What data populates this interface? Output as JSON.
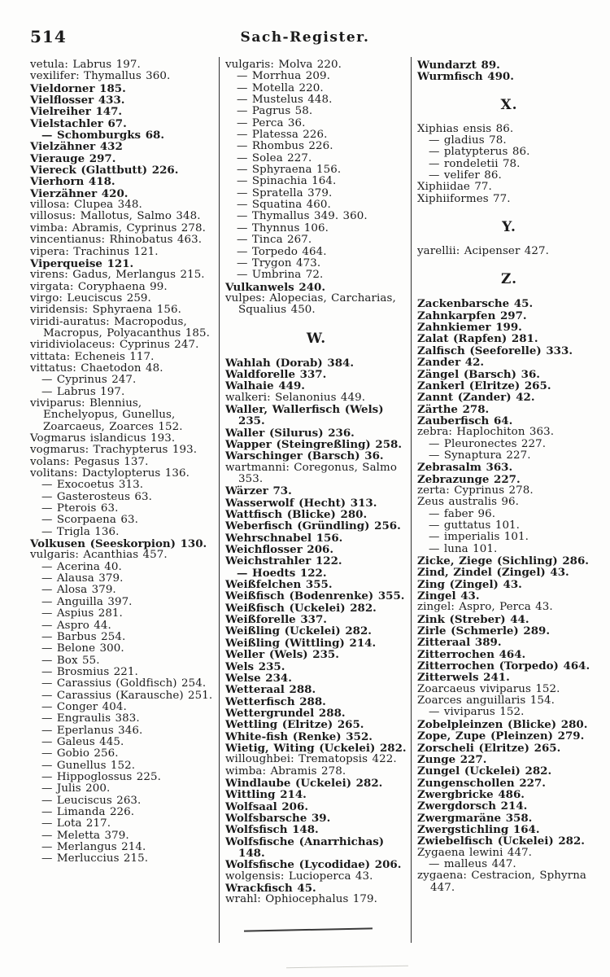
{
  "header": {
    "page_number": "514",
    "title": "Sach-Register."
  },
  "columns": [
    {
      "entries": [
        {
          "t": "vetula: Labrus 197.",
          "s": "a"
        },
        {
          "t": "vexilifer: Thymallus 360.",
          "s": "a"
        },
        {
          "t": "Vieldorner 185.",
          "s": "f"
        },
        {
          "t": "Vielflosser 433.",
          "s": "f"
        },
        {
          "t": "Vielreiher 147.",
          "s": "f"
        },
        {
          "t": "Vielstachler 67.",
          "s": "f"
        },
        {
          "t": "— Schomburgks 68.",
          "s": "sf"
        },
        {
          "t": "Vielzähner 432",
          "s": "f"
        },
        {
          "t": "Vierauge 297.",
          "s": "f"
        },
        {
          "t": "Viereck (Glattbutt) 226.",
          "s": "f"
        },
        {
          "t": "Vierhorn 418.",
          "s": "f"
        },
        {
          "t": "Vierzähner 420.",
          "s": "f"
        },
        {
          "t": "villosa: Clupea 348.",
          "s": "a"
        },
        {
          "t": "villosus: Mallotus, Salmo 348.",
          "s": "a"
        },
        {
          "t": "vimba: Abramis, Cyprinus 278.",
          "s": "a"
        },
        {
          "t": "vincentianus: Rhinobatus 463.",
          "s": "a"
        },
        {
          "t": "vipera: Trachinus 121.",
          "s": "a"
        },
        {
          "t": "Viperqueise 121.",
          "s": "f"
        },
        {
          "t": "virens: Gadus, Merlangus 215.",
          "s": "a"
        },
        {
          "t": "virgata: Coryphaena 99.",
          "s": "a"
        },
        {
          "t": "virgo: Leuciscus 259.",
          "s": "a"
        },
        {
          "t": "viridensis: Sphyraena 156.",
          "s": "a"
        },
        {
          "t": "viridi-auratus: Macropodus, Macropus, Polyacanthus 185.",
          "s": "a"
        },
        {
          "t": "viridiviolaceus: Cyprinus 247.",
          "s": "a"
        },
        {
          "t": "vittata: Echeneis 117.",
          "s": "a"
        },
        {
          "t": "vittatus: Chaetodon 48.",
          "s": "a"
        },
        {
          "t": "— Cyprinus 247.",
          "s": "sa"
        },
        {
          "t": "— Labrus 197.",
          "s": "sa"
        },
        {
          "t": "viviparus: Blennius, Enchelyopus, Gunellus, Zoarcaeus, Zoarces 152.",
          "s": "a"
        },
        {
          "t": "Vogmarus islandicus 193.",
          "s": "a"
        },
        {
          "t": "vogmarus: Trachypterus 193.",
          "s": "a"
        },
        {
          "t": "volans: Pegasus 137.",
          "s": "a"
        },
        {
          "t": "volitans: Dactylopterus 136.",
          "s": "a"
        },
        {
          "t": "— Exocoetus 313.",
          "s": "sa"
        },
        {
          "t": "— Gasterosteus 63.",
          "s": "sa"
        },
        {
          "t": "— Pterois 63.",
          "s": "sa"
        },
        {
          "t": "— Scorpaena 63.",
          "s": "sa"
        },
        {
          "t": "— Trigla 136.",
          "s": "sa"
        },
        {
          "t": "Volkusen (Seeskorpion) 130.",
          "s": "f"
        },
        {
          "t": "vulgaris: Acanthias 457.",
          "s": "a"
        },
        {
          "t": "— Acerina 40.",
          "s": "sa"
        },
        {
          "t": "— Alausa 379.",
          "s": "sa"
        },
        {
          "t": "— Alosa 379.",
          "s": "sa"
        },
        {
          "t": "— Anguilla 397.",
          "s": "sa"
        },
        {
          "t": "— Aspius 281.",
          "s": "sa"
        },
        {
          "t": "— Aspro 44.",
          "s": "sa"
        },
        {
          "t": "— Barbus 254.",
          "s": "sa"
        },
        {
          "t": "— Belone 300.",
          "s": "sa"
        },
        {
          "t": "— Box 55.",
          "s": "sa"
        },
        {
          "t": "— Brosmius 221.",
          "s": "sa"
        },
        {
          "t": "— Carassius (Goldfisch) 254.",
          "s": "sa"
        },
        {
          "t": "— Carassius (Karausche) 251.",
          "s": "sa"
        },
        {
          "t": "— Conger 404.",
          "s": "sa"
        },
        {
          "t": "— Engraulis 383.",
          "s": "sa"
        },
        {
          "t": "— Eperlanus 346.",
          "s": "sa"
        },
        {
          "t": "— Galeus 445.",
          "s": "sa"
        },
        {
          "t": "— Gobio 256.",
          "s": "sa"
        },
        {
          "t": "— Gunellus 152.",
          "s": "sa"
        },
        {
          "t": "— Hippoglossus 225.",
          "s": "sa"
        },
        {
          "t": "— Julis 200.",
          "s": "sa"
        },
        {
          "t": "— Leuciscus 263.",
          "s": "sa"
        },
        {
          "t": "— Limanda 226.",
          "s": "sa"
        },
        {
          "t": "— Lota 217.",
          "s": "sa"
        },
        {
          "t": "— Meletta 379.",
          "s": "sa"
        },
        {
          "t": "— Merlangus 214.",
          "s": "sa"
        },
        {
          "t": "— Merluccius 215.",
          "s": "sa"
        }
      ]
    },
    {
      "entries": [
        {
          "t": "vulgaris: Molva 220.",
          "s": "a"
        },
        {
          "t": "— Morrhua 209.",
          "s": "sa"
        },
        {
          "t": "— Motella 220.",
          "s": "sa"
        },
        {
          "t": "— Mustelus 448.",
          "s": "sa"
        },
        {
          "t": "— Pagrus 58.",
          "s": "sa"
        },
        {
          "t": "— Perca 36.",
          "s": "sa"
        },
        {
          "t": "— Platessa 226.",
          "s": "sa"
        },
        {
          "t": "— Rhombus 226.",
          "s": "sa"
        },
        {
          "t": "— Solea 227.",
          "s": "sa"
        },
        {
          "t": "— Sphyraena 156.",
          "s": "sa"
        },
        {
          "t": "— Spinachia 164.",
          "s": "sa"
        },
        {
          "t": "— Spratella 379.",
          "s": "sa"
        },
        {
          "t": "— Squatina 460.",
          "s": "sa"
        },
        {
          "t": "— Thymallus 349. 360.",
          "s": "sa"
        },
        {
          "t": "— Thynnus 106.",
          "s": "sa"
        },
        {
          "t": "— Tinca 267.",
          "s": "sa"
        },
        {
          "t": "— Torpedo 464.",
          "s": "sa"
        },
        {
          "t": "— Trygon 473.",
          "s": "sa"
        },
        {
          "t": "— Umbrina 72.",
          "s": "sa"
        },
        {
          "t": "Vulkanwels 240.",
          "s": "f"
        },
        {
          "t": "vulpes: Alopecias, Carcharias, Squalius 450.",
          "s": "a"
        },
        {
          "t": "W.",
          "s": "h"
        },
        {
          "t": "Wahlah (Dorab) 384.",
          "s": "f"
        },
        {
          "t": "Waldforelle 337.",
          "s": "f"
        },
        {
          "t": "Walhaie 449.",
          "s": "f"
        },
        {
          "t": "walkeri: Selanonius 449.",
          "s": "a"
        },
        {
          "t": "Waller, Wallerfisch (Wels) 235.",
          "s": "f"
        },
        {
          "t": "Waller (Silurus) 236.",
          "s": "f"
        },
        {
          "t": "Wapper (Steingreßling) 258.",
          "s": "f"
        },
        {
          "t": "Warschinger (Barsch) 36.",
          "s": "f"
        },
        {
          "t": "wartmanni: Coregonus, Salmo 353.",
          "s": "a"
        },
        {
          "t": "Wärzer 73.",
          "s": "f"
        },
        {
          "t": "Wasserwolf (Hecht) 313.",
          "s": "f"
        },
        {
          "t": "Wattfisch (Blicke) 280.",
          "s": "f"
        },
        {
          "t": "Weberfisch (Gründling) 256.",
          "s": "f"
        },
        {
          "t": "Wehrschnabel 156.",
          "s": "f"
        },
        {
          "t": "Weichflosser 206.",
          "s": "f"
        },
        {
          "t": "Weichstrahler 122.",
          "s": "f"
        },
        {
          "t": "— Hoedts 122.",
          "s": "sf"
        },
        {
          "t": "Weißfelchen 355.",
          "s": "f"
        },
        {
          "t": "Weißfisch (Bodenrenke) 355.",
          "s": "f"
        },
        {
          "t": "Weißfisch (Uckelei) 282.",
          "s": "f"
        },
        {
          "t": "Weißforelle 337.",
          "s": "f"
        },
        {
          "t": "Weißling (Uckelei) 282.",
          "s": "f"
        },
        {
          "t": "Weißling (Wittling) 214.",
          "s": "f"
        },
        {
          "t": "Weller (Wels) 235.",
          "s": "f"
        },
        {
          "t": "Wels 235.",
          "s": "f"
        },
        {
          "t": "Welse 234.",
          "s": "f"
        },
        {
          "t": "Wetteraal 288.",
          "s": "f"
        },
        {
          "t": "Wetterfisch 288.",
          "s": "f"
        },
        {
          "t": "Wettergrundel 288.",
          "s": "f"
        },
        {
          "t": "Wettling (Elritze) 265.",
          "s": "f"
        },
        {
          "t": "White-fish (Renke) 352.",
          "s": "f"
        },
        {
          "t": "Wietig, Witing (Uckelei) 282.",
          "s": "f"
        },
        {
          "t": "willoughbei: Trematopsis 422.",
          "s": "a"
        },
        {
          "t": "wimba: Abramis 278.",
          "s": "a"
        },
        {
          "t": "Windlaube (Uckelei) 282.",
          "s": "f"
        },
        {
          "t": "Wittling 214.",
          "s": "f"
        },
        {
          "t": "Wolfsaal 206.",
          "s": "f"
        },
        {
          "t": "Wolfsbarsche 39.",
          "s": "f"
        },
        {
          "t": "Wolfsfisch 148.",
          "s": "f"
        },
        {
          "t": "Wolfsfische (Anarrhichas) 148.",
          "s": "f"
        },
        {
          "t": "Wolfsfische (Lycodidae) 206.",
          "s": "f"
        },
        {
          "t": "wolgensis: Lucioperca 43.",
          "s": "a"
        },
        {
          "t": "Wrackfisch 45.",
          "s": "f"
        },
        {
          "t": "wrahl: Ophiocephalus 179.",
          "s": "a"
        }
      ]
    },
    {
      "entries": [
        {
          "t": "Wundarzt 89.",
          "s": "f"
        },
        {
          "t": "Wurmfisch 490.",
          "s": "f"
        },
        {
          "t": "X.",
          "s": "h"
        },
        {
          "t": "Xiphias ensis 86.",
          "s": "a"
        },
        {
          "t": "— gladius 78.",
          "s": "sa"
        },
        {
          "t": "— platypterus 86.",
          "s": "sa"
        },
        {
          "t": "— rondeletii 78.",
          "s": "sa"
        },
        {
          "t": "— velifer 86.",
          "s": "sa"
        },
        {
          "t": "Xiphiidae 77.",
          "s": "a"
        },
        {
          "t": "Xiphiiformes 77.",
          "s": "a"
        },
        {
          "t": "Y.",
          "s": "h"
        },
        {
          "t": "yarellii: Acipenser 427.",
          "s": "a"
        },
        {
          "t": "Z.",
          "s": "h"
        },
        {
          "t": "Zackenbarsche 45.",
          "s": "f"
        },
        {
          "t": "Zahnkarpfen 297.",
          "s": "f"
        },
        {
          "t": "Zahnkiemer 199.",
          "s": "f"
        },
        {
          "t": "Zalat (Rapfen) 281.",
          "s": "f"
        },
        {
          "t": "Zalfisch (Seeforelle) 333.",
          "s": "f"
        },
        {
          "t": "Zander 42.",
          "s": "f"
        },
        {
          "t": "Zängel (Barsch) 36.",
          "s": "f"
        },
        {
          "t": "Zankerl (Elritze) 265.",
          "s": "f"
        },
        {
          "t": "Zannt (Zander) 42.",
          "s": "f"
        },
        {
          "t": "Zärthe 278.",
          "s": "f"
        },
        {
          "t": "Zauberfisch 64.",
          "s": "f"
        },
        {
          "t": "zebra: Haplochiton 363.",
          "s": "a"
        },
        {
          "t": "— Pleuronectes 227.",
          "s": "sa"
        },
        {
          "t": "— Synaptura 227.",
          "s": "sa"
        },
        {
          "t": "Zebrasalm 363.",
          "s": "f"
        },
        {
          "t": "Zebrazunge 227.",
          "s": "f"
        },
        {
          "t": "zerta: Cyprinus 278.",
          "s": "a"
        },
        {
          "t": "Zeus australis 96.",
          "s": "a"
        },
        {
          "t": "— faber 96.",
          "s": "sa"
        },
        {
          "t": "— guttatus 101.",
          "s": "sa"
        },
        {
          "t": "— imperialis 101.",
          "s": "sa"
        },
        {
          "t": "— luna 101.",
          "s": "sa"
        },
        {
          "t": "Zicke, Ziege (Sichling) 286.",
          "s": "f"
        },
        {
          "t": "Zind, Zindel (Zingel) 43.",
          "s": "f"
        },
        {
          "t": "Zing (Zingel) 43.",
          "s": "f"
        },
        {
          "t": "Zingel 43.",
          "s": "f"
        },
        {
          "t": "zingel: Aspro, Perca 43.",
          "s": "a"
        },
        {
          "t": "Zink (Streber) 44.",
          "s": "f"
        },
        {
          "t": "Zirle (Schmerle) 289.",
          "s": "f"
        },
        {
          "t": "Zitteraal 389.",
          "s": "f"
        },
        {
          "t": "Zitterrochen 464.",
          "s": "f"
        },
        {
          "t": "Zitterrochen (Torpedo) 464.",
          "s": "f"
        },
        {
          "t": "Zitterwels 241.",
          "s": "f"
        },
        {
          "t": "Zoarcaeus viviparus 152.",
          "s": "a"
        },
        {
          "t": "Zoarces anguillaris 154.",
          "s": "a"
        },
        {
          "t": "— viviparus 152.",
          "s": "sa"
        },
        {
          "t": "Zobelpleinzen (Blicke) 280.",
          "s": "f"
        },
        {
          "t": "Zope, Zupe (Pleinzen) 279.",
          "s": "f"
        },
        {
          "t": "Zorscheli (Elritze) 265.",
          "s": "f"
        },
        {
          "t": "Zunge 227.",
          "s": "f"
        },
        {
          "t": "Zungel (Uckelei) 282.",
          "s": "f"
        },
        {
          "t": "Zungenschollen 227.",
          "s": "f"
        },
        {
          "t": "Zwergbricke 486.",
          "s": "f"
        },
        {
          "t": "Zwergdorsch 214.",
          "s": "f"
        },
        {
          "t": "Zwergmaräne 358.",
          "s": "f"
        },
        {
          "t": "Zwergstichling 164.",
          "s": "f"
        },
        {
          "t": "Zwiebelfisch (Uckelei) 282.",
          "s": "f"
        },
        {
          "t": "Zygaena lewini 447.",
          "s": "a"
        },
        {
          "t": "— malleus 447.",
          "s": "sa"
        },
        {
          "t": "zygaena: Cestracion, Sphyrna 447.",
          "s": "a"
        }
      ]
    }
  ]
}
